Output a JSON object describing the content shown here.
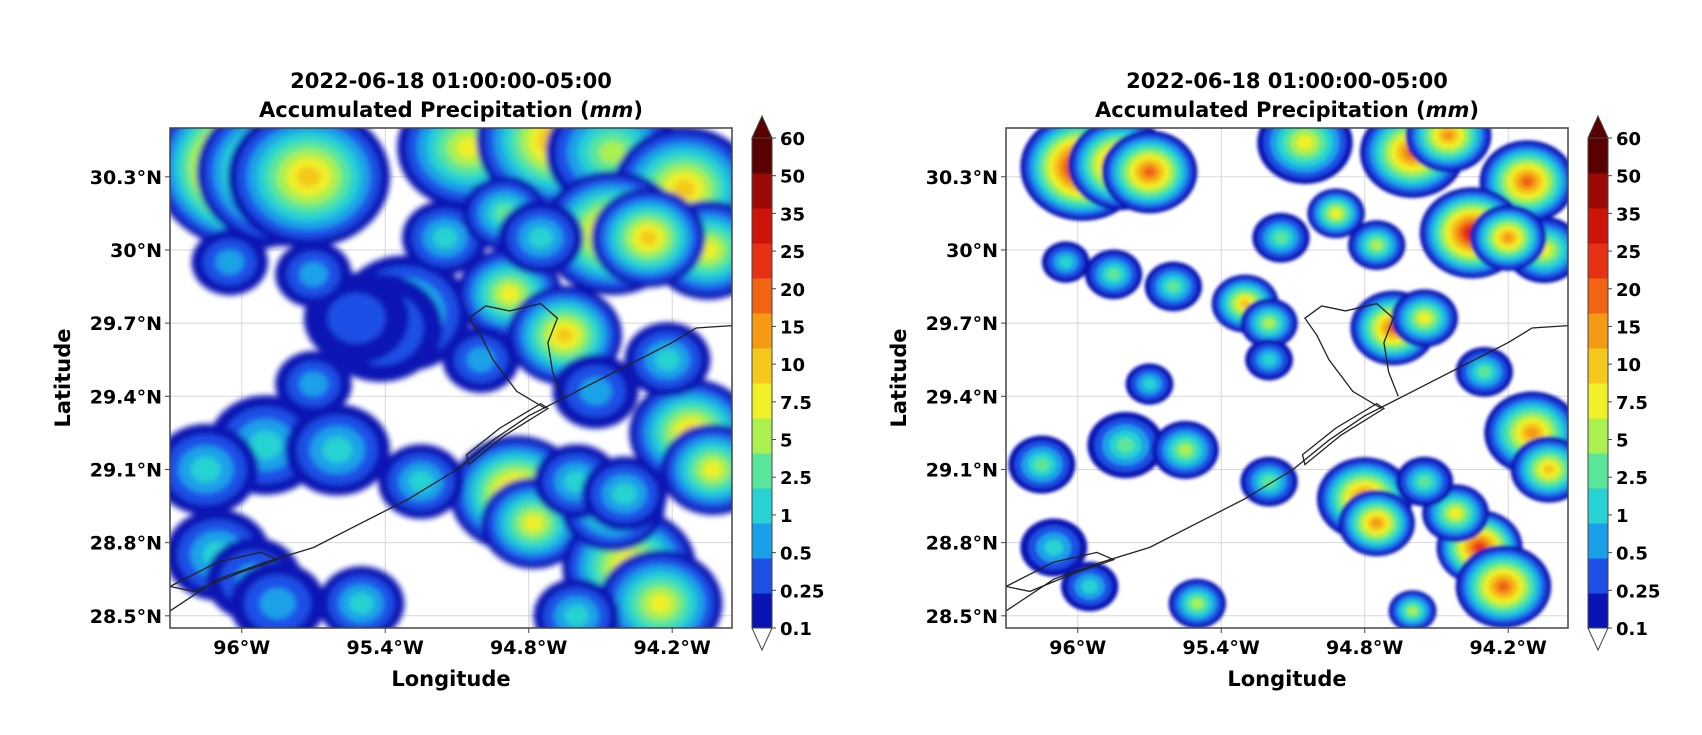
{
  "chart_data": [
    {
      "type": "heatmap",
      "title_line1": "2022-06-18 01:00:00-05:00",
      "title_prefix": "Accumulated Precipitation (",
      "title_unit": "mm",
      "title_suffix": ")",
      "xlabel": "Longitude",
      "ylabel": "Latitude",
      "x_ticks": [
        -96.0,
        -95.4,
        -94.8,
        -94.2
      ],
      "x_tick_labels": [
        "96°W",
        "95.4°W",
        "94.8°W",
        "94.2°W"
      ],
      "y_ticks": [
        28.5,
        28.8,
        29.1,
        29.4,
        29.7,
        30.0,
        30.3
      ],
      "y_tick_labels": [
        "28.5°N",
        "28.8°N",
        "29.1°N",
        "29.4°N",
        "29.7°N",
        "30°N",
        "30.3°N"
      ],
      "xlim": [
        -96.3,
        -93.95
      ],
      "ylim": [
        28.45,
        30.5
      ],
      "grid": true,
      "colorbar_levels": [
        "0.1",
        "0.25",
        "0.5",
        "1",
        "2.5",
        "5",
        "7.5",
        "10",
        "15",
        "20",
        "25",
        "35",
        "50",
        "60"
      ],
      "colorbar_colors": [
        "#0a14b4",
        "#1e50e6",
        "#1aa0e8",
        "#28d2d2",
        "#5ae69a",
        "#aaf050",
        "#f0f028",
        "#f5c81e",
        "#f59a14",
        "#f06414",
        "#e63214",
        "#cd140a",
        "#9b0a05",
        "#5a0000"
      ],
      "cells": [
        [
          -95.97,
          30.34,
          12,
          0.4
        ],
        [
          -95.83,
          30.32,
          9,
          0.36
        ],
        [
          -95.72,
          30.3,
          7,
          0.34
        ],
        [
          -95.05,
          30.42,
          6,
          0.3
        ],
        [
          -94.68,
          30.45,
          8,
          0.34
        ],
        [
          -94.45,
          30.4,
          5,
          0.28
        ],
        [
          -94.15,
          30.25,
          7,
          0.3
        ],
        [
          -94.05,
          30.0,
          6,
          0.24
        ],
        [
          -94.45,
          30.07,
          8,
          0.3
        ],
        [
          -94.3,
          30.05,
          7,
          0.24
        ],
        [
          -95.32,
          29.74,
          4,
          0.28
        ],
        [
          -95.42,
          29.68,
          2,
          0.26
        ],
        [
          -95.52,
          29.72,
          1,
          0.22
        ],
        [
          -94.88,
          29.82,
          6,
          0.22
        ],
        [
          -94.65,
          29.65,
          7,
          0.24
        ],
        [
          -94.85,
          29.0,
          8,
          0.28
        ],
        [
          -94.78,
          28.88,
          6,
          0.22
        ],
        [
          -94.38,
          28.7,
          7,
          0.28
        ],
        [
          -94.25,
          28.55,
          6,
          0.26
        ],
        [
          -94.45,
          28.95,
          5,
          0.22
        ],
        [
          -94.12,
          29.25,
          7,
          0.26
        ],
        [
          -94.03,
          29.1,
          6,
          0.22
        ],
        [
          -95.9,
          29.2,
          3,
          0.24
        ],
        [
          -95.6,
          29.18,
          3,
          0.22
        ],
        [
          -96.15,
          29.1,
          3,
          0.22
        ],
        [
          -96.1,
          28.75,
          3,
          0.22
        ],
        [
          -95.95,
          28.65,
          2,
          0.2
        ],
        [
          -95.85,
          28.55,
          2,
          0.2
        ],
        [
          -95.25,
          29.05,
          3,
          0.18
        ],
        [
          -94.6,
          29.05,
          3,
          0.18
        ],
        [
          -94.4,
          29.0,
          3,
          0.18
        ],
        [
          -94.52,
          29.42,
          2,
          0.18
        ],
        [
          -94.22,
          29.55,
          3,
          0.18
        ],
        [
          -95.7,
          29.45,
          2,
          0.16
        ],
        [
          -96.05,
          29.95,
          2,
          0.16
        ],
        [
          -95.7,
          29.9,
          2,
          0.16
        ],
        [
          -95.15,
          30.05,
          3,
          0.18
        ],
        [
          -94.9,
          30.15,
          4,
          0.18
        ],
        [
          -94.75,
          30.05,
          3,
          0.18
        ],
        [
          -95.0,
          29.55,
          2,
          0.16
        ],
        [
          -95.5,
          28.55,
          3,
          0.18
        ],
        [
          -94.6,
          28.5,
          3,
          0.18
        ]
      ]
    },
    {
      "type": "heatmap",
      "title_line1": "2022-06-18 01:00:00-05:00",
      "title_prefix": "Accumulated Precipitation (",
      "title_unit": "mm",
      "title_suffix": ")",
      "xlabel": "Longitude",
      "ylabel": "Latitude",
      "x_ticks": [
        -96.0,
        -95.4,
        -94.8,
        -94.2
      ],
      "x_tick_labels": [
        "96°W",
        "95.4°W",
        "94.8°W",
        "94.2°W"
      ],
      "y_ticks": [
        28.5,
        28.8,
        29.1,
        29.4,
        29.7,
        30.0,
        30.3
      ],
      "y_tick_labels": [
        "28.5°N",
        "28.8°N",
        "29.1°N",
        "29.4°N",
        "29.7°N",
        "30°N",
        "30.3°N"
      ],
      "xlim": [
        -96.3,
        -93.95
      ],
      "ylim": [
        28.45,
        30.5
      ],
      "grid": true,
      "colorbar_levels": [
        "0.1",
        "0.25",
        "0.5",
        "1",
        "2.5",
        "5",
        "7.5",
        "10",
        "15",
        "20",
        "25",
        "35",
        "50",
        "60"
      ],
      "colorbar_colors": [
        "#0a14b4",
        "#1e50e6",
        "#1aa0e8",
        "#28d2d2",
        "#5ae69a",
        "#aaf050",
        "#f0f028",
        "#f5c81e",
        "#f59a14",
        "#f06414",
        "#e63214",
        "#cd140a",
        "#9b0a05",
        "#5a0000"
      ],
      "cells": [
        [
          -95.98,
          30.34,
          12,
          0.26
        ],
        [
          -95.82,
          30.35,
          10,
          0.22
        ],
        [
          -95.7,
          30.32,
          9,
          0.2
        ],
        [
          -95.05,
          30.44,
          6,
          0.2
        ],
        [
          -94.6,
          30.4,
          9,
          0.22
        ],
        [
          -94.45,
          30.47,
          8,
          0.18
        ],
        [
          -94.12,
          30.28,
          9,
          0.2
        ],
        [
          -94.05,
          30.0,
          6,
          0.16
        ],
        [
          -94.35,
          30.07,
          11,
          0.22
        ],
        [
          -94.2,
          30.05,
          8,
          0.16
        ],
        [
          -94.68,
          29.68,
          9,
          0.18
        ],
        [
          -94.55,
          29.72,
          6,
          0.14
        ],
        [
          -94.8,
          28.98,
          9,
          0.2
        ],
        [
          -94.75,
          28.88,
          8,
          0.16
        ],
        [
          -94.32,
          28.78,
          10,
          0.18
        ],
        [
          -94.22,
          28.62,
          9,
          0.2
        ],
        [
          -94.42,
          28.92,
          6,
          0.14
        ],
        [
          -94.1,
          29.25,
          8,
          0.2
        ],
        [
          -94.03,
          29.1,
          7,
          0.16
        ],
        [
          -95.3,
          29.78,
          7,
          0.14
        ],
        [
          -95.2,
          29.7,
          5,
          0.12
        ],
        [
          -95.8,
          29.2,
          4,
          0.16
        ],
        [
          -95.55,
          29.18,
          5,
          0.14
        ],
        [
          -96.15,
          29.12,
          4,
          0.14
        ],
        [
          -96.1,
          28.78,
          3,
          0.14
        ],
        [
          -95.95,
          28.62,
          3,
          0.12
        ],
        [
          -95.5,
          28.55,
          5,
          0.12
        ],
        [
          -95.6,
          29.85,
          4,
          0.12
        ],
        [
          -95.85,
          29.9,
          4,
          0.12
        ],
        [
          -95.15,
          30.05,
          4,
          0.12
        ],
        [
          -94.92,
          30.15,
          6,
          0.12
        ],
        [
          -94.75,
          30.02,
          5,
          0.12
        ],
        [
          -95.2,
          29.55,
          3,
          0.1
        ],
        [
          -95.7,
          29.45,
          3,
          0.1
        ],
        [
          -96.05,
          29.95,
          3,
          0.1
        ],
        [
          -94.3,
          29.5,
          4,
          0.12
        ],
        [
          -94.55,
          29.05,
          4,
          0.12
        ],
        [
          -95.2,
          29.05,
          4,
          0.12
        ],
        [
          -94.6,
          28.52,
          5,
          0.1
        ]
      ]
    }
  ]
}
